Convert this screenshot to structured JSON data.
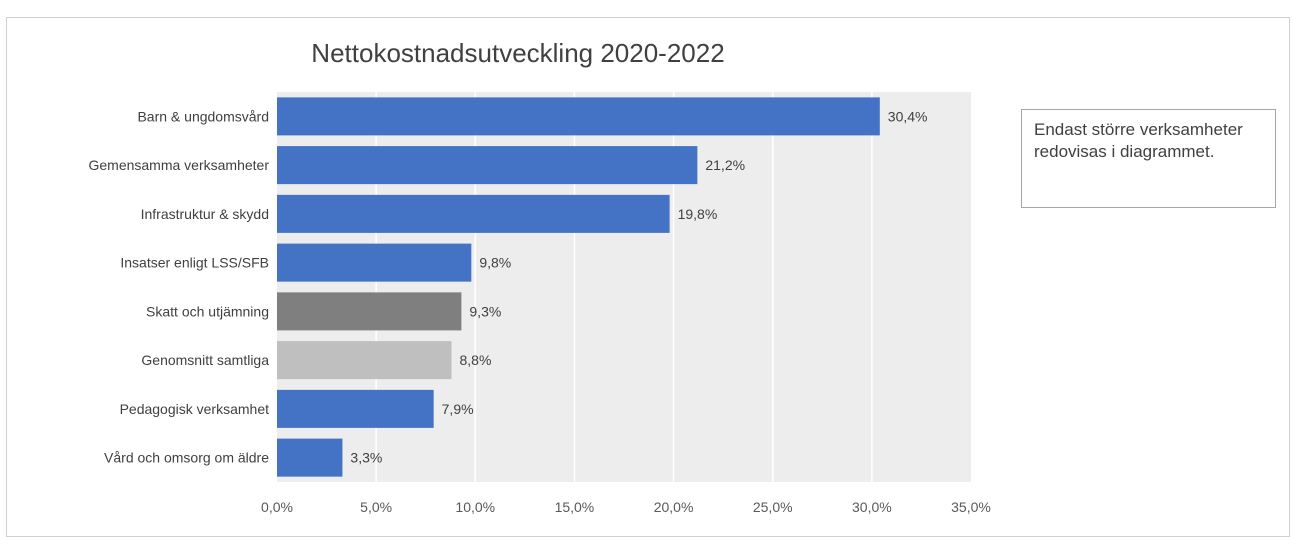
{
  "note": "Endast större verksamheter redovisas i diagrammet.",
  "colors": {
    "primary": "#4472c4",
    "tax": "#7f7f7f",
    "average": "#bfbfbf",
    "plot_bg": "#ededed",
    "grid": "#ffffff"
  },
  "chart_data": {
    "type": "bar",
    "orientation": "horizontal",
    "title": "Nettokostnadsutveckling 2020-2022",
    "xlabel": "",
    "ylabel": "",
    "xlim": [
      0,
      35
    ],
    "x_ticks": [
      "0,0%",
      "5,0%",
      "10,0%",
      "15,0%",
      "20,0%",
      "25,0%",
      "30,0%",
      "35,0%"
    ],
    "grid": true,
    "categories": [
      "Barn & ungdomsvård",
      "Gemensamma verksamheter",
      "Infrastruktur & skydd",
      "Insatser enligt LSS/SFB",
      "Skatt och utjämning",
      "Genomsnitt samtliga",
      "Pedagogisk verksamhet",
      "Vård och omsorg om äldre"
    ],
    "values": [
      30.4,
      21.2,
      19.8,
      9.8,
      9.3,
      8.8,
      7.9,
      3.3
    ],
    "value_labels": [
      "30,4%",
      "21,2%",
      "19,8%",
      "9,8%",
      "9,3%",
      "8,8%",
      "7,9%",
      "3,3%"
    ],
    "bar_colors": [
      "#4472c4",
      "#4472c4",
      "#4472c4",
      "#4472c4",
      "#7f7f7f",
      "#bfbfbf",
      "#4472c4",
      "#4472c4"
    ]
  }
}
